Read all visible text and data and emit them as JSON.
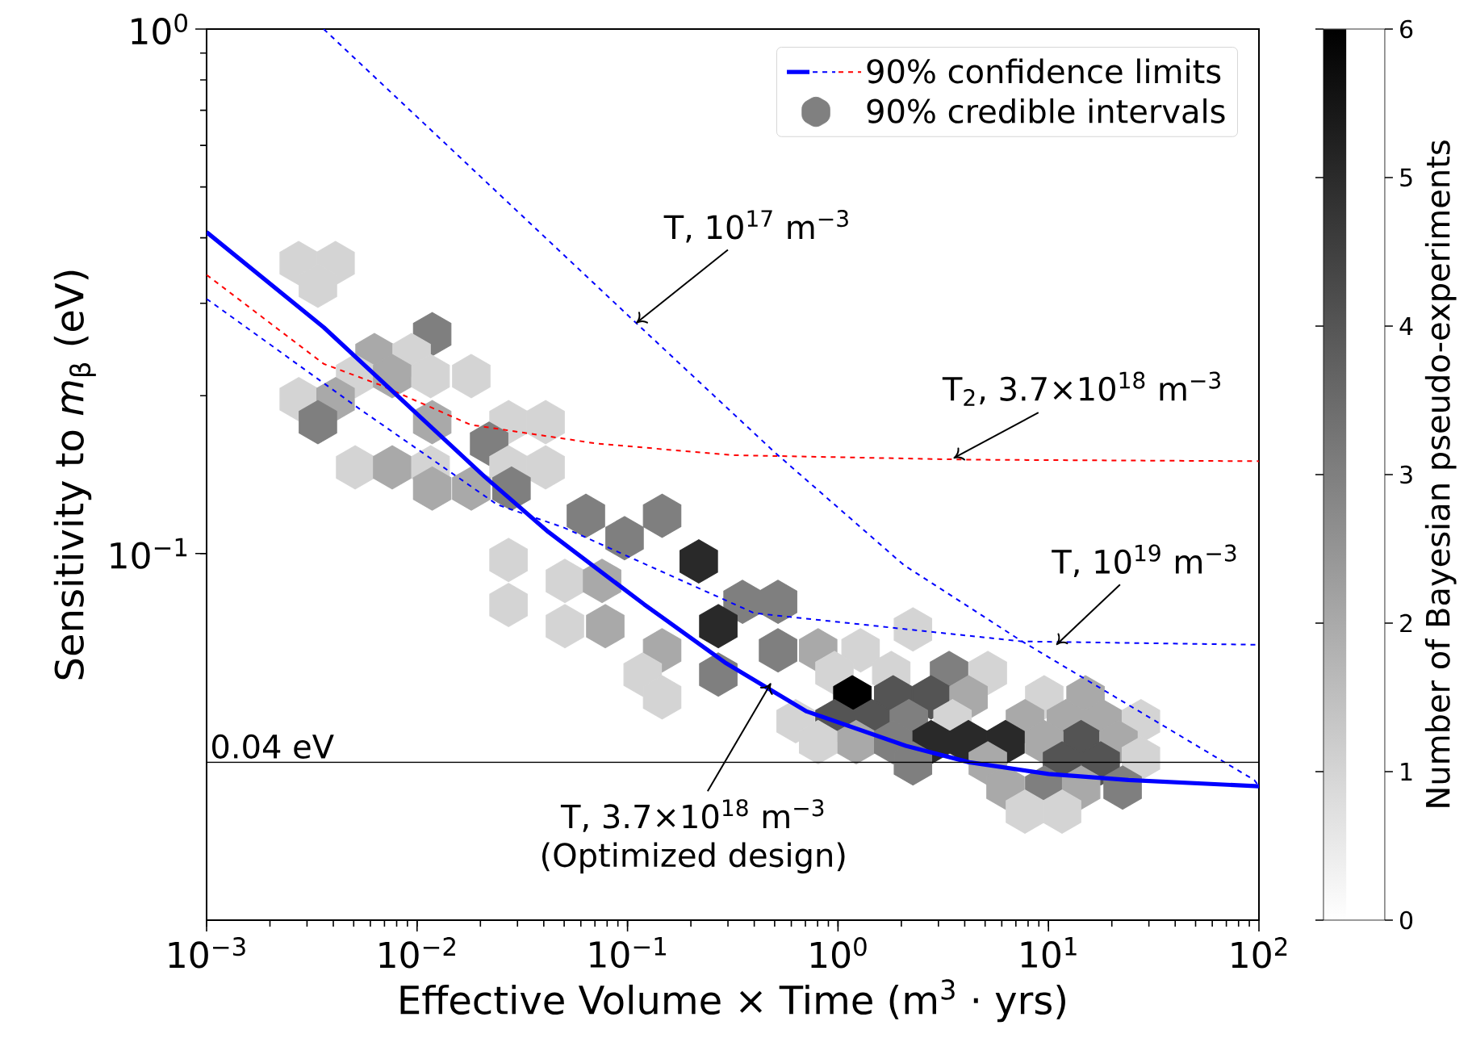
{
  "chart_data": {
    "type": "line",
    "xlabel": "Effective Volume × Time (m$^{3}$ · yrs)",
    "ylabel": "Sensitivity to *m*$_{β}$ (eV)",
    "clabel": "Number of Bayesian pseudo-experiments",
    "log": "xy",
    "xlim": [
      0.001,
      100
    ],
    "ylim": [
      0.02,
      1
    ],
    "xticks": [
      {
        "value": 0.001,
        "label": "10$^{−3}$"
      },
      {
        "value": 0.01,
        "label": "10$^{−2}$"
      },
      {
        "value": 0.1,
        "label": "10$^{−1}$"
      },
      {
        "value": 1,
        "label": "10$^{0}$"
      },
      {
        "value": 10,
        "label": "10$^{1}$"
      },
      {
        "value": 100,
        "label": "10$^{2}$"
      }
    ],
    "yticks": [
      {
        "value": 0.1,
        "label": "10$^{−1}$"
      },
      {
        "value": 1,
        "label": "10$^{0}$"
      }
    ],
    "clim": [
      0,
      6
    ],
    "cticks": [
      0,
      1,
      2,
      3,
      4,
      5,
      6
    ],
    "legend": "top right",
    "series": [
      {
        "name": "90% confidence limits",
        "type": "line",
        "color": "#ff0000",
        "line_style": "dashed",
        "x": [
          0.001,
          0.0036,
          0.0066,
          0.018,
          0.072,
          0.32,
          4.2,
          100
        ],
        "values": [
          0.34,
          0.23,
          0.21,
          0.176,
          0.162,
          0.154,
          0.151,
          0.15
        ]
      },
      {
        "type": "line",
        "color": "#0000ff",
        "line_style": "solid",
        "x": [
          0.001,
          0.0036,
          0.021,
          0.042,
          0.12,
          0.29,
          0.71,
          2.1,
          4.2,
          10,
          24,
          100
        ],
        "values": [
          0.41,
          0.27,
          0.14,
          0.11,
          0.08,
          0.062,
          0.05,
          0.043,
          0.04,
          0.038,
          0.037,
          0.036
        ]
      },
      {
        "type": "line",
        "color": "#0000ff",
        "line_style": "dashed",
        "x": [
          0.001,
          0.0053,
          0.024,
          0.05,
          0.4,
          7.5,
          100
        ],
        "values": [
          0.306,
          0.189,
          0.124,
          0.112,
          0.077,
          0.068,
          0.067
        ]
      },
      {
        "type": "line",
        "color": "#0000ff",
        "line_style": "dashed",
        "x": [
          0.0036,
          0.11,
          0.5,
          2.06,
          7.5,
          95,
          100
        ],
        "values": [
          1,
          0.275,
          0.156,
          0.095,
          0.068,
          0.037,
          0.036
        ]
      },
      {
        "name": "90% credible intervals",
        "type": "scatter",
        "x": [
          0.00274,
          0.0041,
          0.00338,
          0.0118,
          0.00628,
          0.00942,
          0.00508,
          0.00762,
          0.0116,
          0.0181,
          0.00274,
          0.0041,
          0.00338,
          0.0118,
          0.0272,
          0.0408,
          0.022,
          0.00508,
          0.00762,
          0.0116,
          0.0272,
          0.0408,
          0.0118,
          0.0181,
          0.0281,
          0.0634,
          0.146,
          0.0968,
          0.218,
          0.0272,
          0.0504,
          0.0757,
          0.519,
          0.352,
          0.0272,
          0.27,
          0.0784,
          0.0504,
          0.519,
          0.146,
          0.805,
          1.28,
          2.27,
          0.962,
          1.79,
          3.37,
          5.15,
          0.118,
          0.27,
          1.17,
          1.83,
          2.77,
          4.17,
          9.55,
          15.0,
          0.146,
          0.629,
          0.962,
          1.45,
          2.17,
          3.5,
          7.73,
          12.1,
          18.1,
          27.5,
          2.77,
          4.17,
          6.25,
          14.3,
          1.22,
          0.805,
          1.83,
          9.55,
          21.5,
          2.27,
          5.15,
          11.6,
          17.7,
          27.5,
          6.25,
          9.55,
          14.3,
          22.5,
          7.73,
          11.6
        ],
        "values": [
          0.358,
          0.358,
          0.324,
          0.262,
          0.239,
          0.239,
          0.218,
          0.218,
          0.218,
          0.218,
          0.197,
          0.197,
          0.178,
          0.178,
          0.178,
          0.178,
          0.162,
          0.146,
          0.146,
          0.146,
          0.146,
          0.146,
          0.133,
          0.133,
          0.133,
          0.118,
          0.118,
          0.107,
          0.0966,
          0.0972,
          0.0887,
          0.0887,
          0.0809,
          0.0809,
          0.0798,
          0.0727,
          0.0727,
          0.0727,
          0.0654,
          0.0654,
          0.0654,
          0.0654,
          0.0717,
          0.0592,
          0.0592,
          0.0592,
          0.0592,
          0.0588,
          0.0588,
          0.0532,
          0.0532,
          0.0532,
          0.0532,
          0.0532,
          0.0532,
          0.0532,
          0.0479,
          0.0479,
          0.0479,
          0.0479,
          0.0479,
          0.0479,
          0.0479,
          0.0479,
          0.0479,
          0.0437,
          0.0437,
          0.0437,
          0.0437,
          0.0437,
          0.0437,
          0.0437,
          0.0437,
          0.0437,
          0.0398,
          0.0398,
          0.0398,
          0.0398,
          0.0407,
          0.0358,
          0.0358,
          0.0358,
          0.0358,
          0.0322,
          0.0322
        ],
        "cvalues": [
          1,
          1,
          1,
          3,
          2,
          1,
          1,
          2,
          1,
          1,
          1,
          2,
          3,
          2,
          1,
          1,
          3,
          1,
          2,
          1,
          1,
          1,
          2,
          2,
          3,
          3,
          3,
          3,
          5,
          1,
          1,
          2,
          3,
          3,
          1,
          5,
          2,
          1,
          3,
          2,
          2,
          1,
          1,
          1,
          1,
          3,
          1,
          1,
          3,
          6,
          4,
          4,
          2,
          1,
          2,
          1,
          1,
          4,
          4,
          3,
          1,
          2,
          2,
          2,
          1,
          5,
          5,
          5,
          4,
          2,
          1,
          3,
          2,
          2,
          3,
          2,
          4,
          4,
          1,
          2,
          3,
          2,
          3,
          1,
          1
        ],
        "colors": [
          "#d5d5d5",
          "#d5d5d5",
          "#d5d5d5",
          "#808080",
          "#aaaaaa",
          "#d5d5d5",
          "#d5d5d5",
          "#aaaaaa",
          "#d5d5d5",
          "#d5d5d5",
          "#d5d5d5",
          "#aaaaaa",
          "#808080",
          "#aaaaaa",
          "#d5d5d5",
          "#d5d5d5",
          "#808080",
          "#d5d5d5",
          "#aaaaaa",
          "#d5d5d5",
          "#d5d5d5",
          "#d5d5d5",
          "#aaaaaa",
          "#aaaaaa",
          "#808080",
          "#808080",
          "#808080",
          "#808080",
          "#2b2b2b",
          "#d5d5d5",
          "#d5d5d5",
          "#aaaaaa",
          "#808080",
          "#808080",
          "#d5d5d5",
          "#2b2b2b",
          "#aaaaaa",
          "#d5d5d5",
          "#808080",
          "#aaaaaa",
          "#aaaaaa",
          "#d5d5d5",
          "#d5d5d5",
          "#d5d5d5",
          "#d5d5d5",
          "#808080",
          "#d5d5d5",
          "#d5d5d5",
          "#808080",
          "#000000",
          "#555555",
          "#555555",
          "#aaaaaa",
          "#d5d5d5",
          "#aaaaaa",
          "#d5d5d5",
          "#d5d5d5",
          "#555555",
          "#555555",
          "#808080",
          "#d5d5d5",
          "#aaaaaa",
          "#aaaaaa",
          "#aaaaaa",
          "#d5d5d5",
          "#2b2b2b",
          "#2b2b2b",
          "#2b2b2b",
          "#555555",
          "#aaaaaa",
          "#d5d5d5",
          "#808080",
          "#aaaaaa",
          "#aaaaaa",
          "#808080",
          "#aaaaaa",
          "#555555",
          "#555555",
          "#d5d5d5",
          "#aaaaaa",
          "#808080",
          "#aaaaaa",
          "#808080",
          "#d5d5d5",
          "#d5d5d5"
        ]
      }
    ],
    "ref_lines": [
      {
        "axis": "y",
        "value": 0.04,
        "label": "0.04 eV",
        "color": "#000000"
      }
    ],
    "annotations": [
      {
        "text": "T, 10$^{17}$ m$^{−3}$",
        "x": 0.11,
        "y": 0.275
      },
      {
        "text": "T$_{2}$, 3.7×10$^{18}$ m$^{−3}$",
        "x": 3.54,
        "y": 0.152
      },
      {
        "text": "T, 10$^{19}$ m$^{−3}$",
        "x": 10.9,
        "y": 0.067
      },
      {
        "text": "T, 3.7×10$^{18}$ m$^{−3}$",
        "x": 0.48,
        "y": 0.0566
      },
      "(Optimized design)"
    ]
  }
}
